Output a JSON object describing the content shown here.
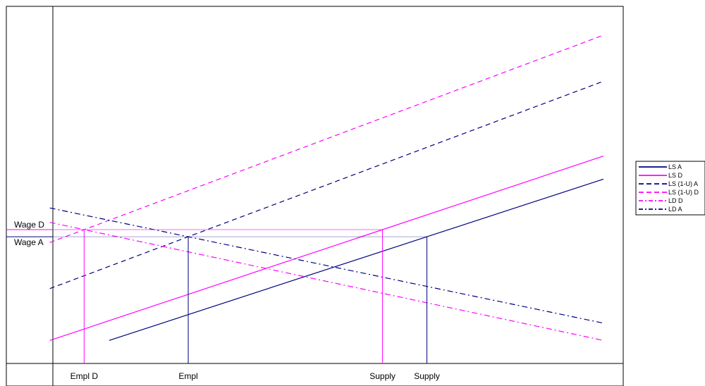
{
  "chart_data": {
    "type": "line",
    "title": "",
    "xlabel": "",
    "ylabel": "",
    "grid": false,
    "legend_position": "right",
    "y_tick_labels": [
      {
        "label": "Wage D",
        "series": "LS (1-U) D"
      },
      {
        "label": "Wage A",
        "series": "LS (1-U) A"
      }
    ],
    "x_tick_labels": [
      {
        "label": "Empl D",
        "series": "LS (1-U) D"
      },
      {
        "label": "Empl",
        "series": "LS (1-U) A"
      },
      {
        "label": "Supply",
        "series": "LS D"
      },
      {
        "label": "Supply",
        "series": "LS A"
      }
    ],
    "series": [
      {
        "name": "LS A",
        "color": "#000080",
        "dash": "solid",
        "x": [
          4,
          29
        ],
        "y": [
          4,
          32
        ]
      },
      {
        "name": "LS D",
        "color": "#FF00FF",
        "dash": "solid",
        "x": [
          1,
          29
        ],
        "y": [
          4,
          36
        ]
      },
      {
        "name": "LS (1-U) A",
        "color": "#000080",
        "dash": "dashed",
        "x": [
          1,
          29
        ],
        "y": [
          13,
          49
        ]
      },
      {
        "name": "LS (1-U) D",
        "color": "#FF00FF",
        "dash": "dashed",
        "x": [
          1,
          29
        ],
        "y": [
          21,
          57
        ]
      },
      {
        "name": "LD D",
        "color": "#FF00FF",
        "dash": "dashdot",
        "x": [
          1,
          29
        ],
        "y": [
          24.5,
          4
        ]
      },
      {
        "name": "LD A",
        "color": "#000080",
        "dash": "dashdot",
        "x": [
          1,
          29
        ],
        "y": [
          27,
          7
        ]
      }
    ],
    "xlim": [
      -1.2,
      30
    ],
    "ylim": [
      0,
      62
    ]
  }
}
